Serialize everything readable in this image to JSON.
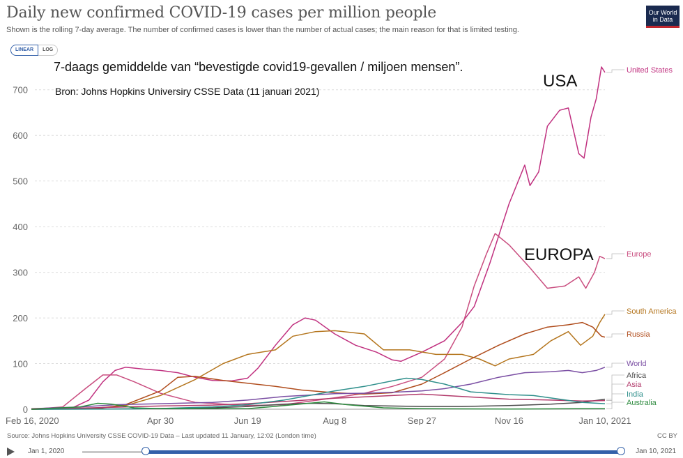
{
  "header": {
    "title": "Daily new confirmed COVID-19 cases per million people",
    "subtitle": "Shown is the rolling 7-day average. The number of confirmed cases is lower than the number of actual cases; the main reason for that is limited testing.",
    "logo_line1": "Our World",
    "logo_line2": "in Data"
  },
  "scale_toggle": {
    "linear": "LINEAR",
    "log": "LOG",
    "selected": "LINEAR"
  },
  "annotations": {
    "dutch_title": "7-daags gemiddelde van “bevestigde covid19-gevallen / miljoen mensen”.",
    "dutch_source": "Bron: Johns Hopkins Universiry CSSE Data (11 januari 2021)",
    "usa": "USA",
    "europa": "EUROPA"
  },
  "footer": {
    "source": "Source: Johns Hopkins University CSSE COVID-19 Data – Last updated 11 January, 12:02 (London time)",
    "license": "CC BY"
  },
  "timeline": {
    "start": "Jan 1, 2020",
    "end": "Jan 10, 2021"
  },
  "chart_data": {
    "type": "line",
    "ylim": [
      0,
      750
    ],
    "yticks": [
      0,
      100,
      200,
      300,
      400,
      500,
      600,
      700
    ],
    "xlim": [
      "2020-02-16",
      "2021-01-10"
    ],
    "xticks": [
      "Feb 16, 2020",
      "Apr 30",
      "Jun 19",
      "Aug 8",
      "Sep 27",
      "Nov 16",
      "Jan 10, 2021"
    ],
    "xtick_dates": [
      "2020-02-16",
      "2020-04-30",
      "2020-06-19",
      "2020-08-08",
      "2020-09-27",
      "2020-11-16",
      "2021-01-10"
    ],
    "grid": "horizontal dashed",
    "series": [
      {
        "name": "United States",
        "color": "#c0307f",
        "points": [
          [
            "2020-02-16",
            0
          ],
          [
            "2020-03-10",
            2
          ],
          [
            "2020-03-20",
            20
          ],
          [
            "2020-03-28",
            60
          ],
          [
            "2020-04-04",
            85
          ],
          [
            "2020-04-10",
            92
          ],
          [
            "2020-04-20",
            88
          ],
          [
            "2020-04-30",
            85
          ],
          [
            "2020-05-10",
            80
          ],
          [
            "2020-05-20",
            70
          ],
          [
            "2020-05-30",
            63
          ],
          [
            "2020-06-10",
            62
          ],
          [
            "2020-06-19",
            68
          ],
          [
            "2020-06-25",
            90
          ],
          [
            "2020-07-05",
            140
          ],
          [
            "2020-07-15",
            185
          ],
          [
            "2020-07-22",
            200
          ],
          [
            "2020-07-28",
            195
          ],
          [
            "2020-08-08",
            165
          ],
          [
            "2020-08-20",
            140
          ],
          [
            "2020-09-01",
            125
          ],
          [
            "2020-09-10",
            108
          ],
          [
            "2020-09-15",
            105
          ],
          [
            "2020-09-27",
            125
          ],
          [
            "2020-10-10",
            150
          ],
          [
            "2020-10-20",
            190
          ],
          [
            "2020-10-27",
            225
          ],
          [
            "2020-11-05",
            320
          ],
          [
            "2020-11-16",
            450
          ],
          [
            "2020-11-25",
            535
          ],
          [
            "2020-11-28",
            490
          ],
          [
            "2020-12-03",
            520
          ],
          [
            "2020-12-08",
            620
          ],
          [
            "2020-12-15",
            655
          ],
          [
            "2020-12-20",
            660
          ],
          [
            "2020-12-26",
            560
          ],
          [
            "2020-12-29",
            550
          ],
          [
            "2021-01-02",
            640
          ],
          [
            "2021-01-05",
            680
          ],
          [
            "2021-01-08",
            750
          ],
          [
            "2021-01-10",
            738
          ]
        ]
      },
      {
        "name": "Europe",
        "color": "#c94d7f",
        "points": [
          [
            "2020-02-16",
            0
          ],
          [
            "2020-03-05",
            5
          ],
          [
            "2020-03-18",
            45
          ],
          [
            "2020-03-28",
            75
          ],
          [
            "2020-04-05",
            75
          ],
          [
            "2020-04-15",
            60
          ],
          [
            "2020-04-30",
            35
          ],
          [
            "2020-05-20",
            15
          ],
          [
            "2020-06-19",
            8
          ],
          [
            "2020-07-10",
            10
          ],
          [
            "2020-08-08",
            25
          ],
          [
            "2020-08-25",
            35
          ],
          [
            "2020-09-10",
            50
          ],
          [
            "2020-09-27",
            70
          ],
          [
            "2020-10-10",
            110
          ],
          [
            "2020-10-20",
            180
          ],
          [
            "2020-10-27",
            270
          ],
          [
            "2020-11-03",
            340
          ],
          [
            "2020-11-08",
            385
          ],
          [
            "2020-11-16",
            360
          ],
          [
            "2020-11-28",
            310
          ],
          [
            "2020-12-08",
            265
          ],
          [
            "2020-12-18",
            270
          ],
          [
            "2020-12-26",
            290
          ],
          [
            "2020-12-30",
            265
          ],
          [
            "2021-01-04",
            300
          ],
          [
            "2021-01-07",
            335
          ],
          [
            "2021-01-10",
            330
          ]
        ]
      },
      {
        "name": "South America",
        "color": "#b4751d",
        "points": [
          [
            "2020-02-16",
            0
          ],
          [
            "2020-03-20",
            1
          ],
          [
            "2020-04-10",
            8
          ],
          [
            "2020-04-30",
            30
          ],
          [
            "2020-05-20",
            65
          ],
          [
            "2020-06-05",
            100
          ],
          [
            "2020-06-19",
            120
          ],
          [
            "2020-07-05",
            130
          ],
          [
            "2020-07-15",
            160
          ],
          [
            "2020-07-28",
            170
          ],
          [
            "2020-08-08",
            172
          ],
          [
            "2020-08-25",
            165
          ],
          [
            "2020-09-05",
            130
          ],
          [
            "2020-09-20",
            130
          ],
          [
            "2020-10-05",
            120
          ],
          [
            "2020-10-20",
            120
          ],
          [
            "2020-10-30",
            110
          ],
          [
            "2020-11-08",
            95
          ],
          [
            "2020-11-16",
            110
          ],
          [
            "2020-11-30",
            120
          ],
          [
            "2020-12-10",
            150
          ],
          [
            "2020-12-20",
            170
          ],
          [
            "2020-12-27",
            140
          ],
          [
            "2021-01-03",
            160
          ],
          [
            "2021-01-07",
            190
          ],
          [
            "2021-01-10",
            208
          ]
        ]
      },
      {
        "name": "Russia",
        "color": "#b04d1d",
        "points": [
          [
            "2020-02-16",
            0
          ],
          [
            "2020-03-25",
            1
          ],
          [
            "2020-04-10",
            10
          ],
          [
            "2020-04-30",
            40
          ],
          [
            "2020-05-10",
            70
          ],
          [
            "2020-05-20",
            72
          ],
          [
            "2020-06-05",
            63
          ],
          [
            "2020-06-19",
            57
          ],
          [
            "2020-07-05",
            50
          ],
          [
            "2020-07-20",
            42
          ],
          [
            "2020-08-08",
            36
          ],
          [
            "2020-08-25",
            33
          ],
          [
            "2020-09-10",
            36
          ],
          [
            "2020-09-27",
            55
          ],
          [
            "2020-10-10",
            80
          ],
          [
            "2020-10-25",
            110
          ],
          [
            "2020-11-10",
            140
          ],
          [
            "2020-11-25",
            165
          ],
          [
            "2020-12-08",
            180
          ],
          [
            "2020-12-20",
            185
          ],
          [
            "2020-12-28",
            190
          ],
          [
            "2021-01-03",
            180
          ],
          [
            "2021-01-08",
            160
          ],
          [
            "2021-01-10",
            158
          ]
        ]
      },
      {
        "name": "World",
        "color": "#7a4ea3",
        "points": [
          [
            "2020-02-16",
            1
          ],
          [
            "2020-03-15",
            5
          ],
          [
            "2020-04-05",
            10
          ],
          [
            "2020-04-30",
            12
          ],
          [
            "2020-05-30",
            15
          ],
          [
            "2020-06-19",
            20
          ],
          [
            "2020-07-10",
            28
          ],
          [
            "2020-08-08",
            34
          ],
          [
            "2020-08-25",
            35
          ],
          [
            "2020-09-10",
            37
          ],
          [
            "2020-09-27",
            40
          ],
          [
            "2020-10-10",
            45
          ],
          [
            "2020-10-25",
            55
          ],
          [
            "2020-11-10",
            70
          ],
          [
            "2020-11-25",
            80
          ],
          [
            "2020-12-10",
            82
          ],
          [
            "2020-12-20",
            85
          ],
          [
            "2020-12-28",
            80
          ],
          [
            "2021-01-05",
            85
          ],
          [
            "2021-01-10",
            92
          ]
        ]
      },
      {
        "name": "Africa",
        "color": "#4b4b4b",
        "points": [
          [
            "2020-02-16",
            0
          ],
          [
            "2020-03-30",
            0.5
          ],
          [
            "2020-04-30",
            1.5
          ],
          [
            "2020-05-30",
            3
          ],
          [
            "2020-06-19",
            6
          ],
          [
            "2020-07-10",
            11
          ],
          [
            "2020-07-25",
            13
          ],
          [
            "2020-08-08",
            12
          ],
          [
            "2020-08-25",
            8
          ],
          [
            "2020-09-27",
            6
          ],
          [
            "2020-10-20",
            6
          ],
          [
            "2020-11-16",
            8
          ],
          [
            "2020-12-10",
            11
          ],
          [
            "2020-12-28",
            15
          ],
          [
            "2021-01-10",
            22
          ]
        ]
      },
      {
        "name": "Asia",
        "color": "#b23a6b",
        "points": [
          [
            "2020-02-16",
            1
          ],
          [
            "2020-03-10",
            2
          ],
          [
            "2020-04-10",
            5
          ],
          [
            "2020-04-30",
            7
          ],
          [
            "2020-05-30",
            9
          ],
          [
            "2020-06-19",
            12
          ],
          [
            "2020-07-10",
            17
          ],
          [
            "2020-08-08",
            24
          ],
          [
            "2020-09-10",
            30
          ],
          [
            "2020-09-27",
            33
          ],
          [
            "2020-10-20",
            28
          ],
          [
            "2020-11-16",
            22
          ],
          [
            "2020-12-10",
            20
          ],
          [
            "2020-12-28",
            18
          ],
          [
            "2021-01-10",
            19
          ]
        ]
      },
      {
        "name": "India",
        "color": "#2e8f8b",
        "points": [
          [
            "2020-02-16",
            0
          ],
          [
            "2020-04-10",
            0.5
          ],
          [
            "2020-04-30",
            1.5
          ],
          [
            "2020-05-30",
            5
          ],
          [
            "2020-06-19",
            10
          ],
          [
            "2020-07-10",
            20
          ],
          [
            "2020-08-08",
            40
          ],
          [
            "2020-08-25",
            50
          ],
          [
            "2020-09-10",
            62
          ],
          [
            "2020-09-18",
            68
          ],
          [
            "2020-09-27",
            65
          ],
          [
            "2020-10-10",
            55
          ],
          [
            "2020-10-25",
            38
          ],
          [
            "2020-11-16",
            32
          ],
          [
            "2020-11-30",
            30
          ],
          [
            "2020-12-15",
            22
          ],
          [
            "2020-12-28",
            15
          ],
          [
            "2021-01-10",
            12
          ]
        ]
      },
      {
        "name": "Australia",
        "color": "#2d8a3e",
        "points": [
          [
            "2020-02-16",
            0
          ],
          [
            "2020-03-15",
            5
          ],
          [
            "2020-03-25",
            13
          ],
          [
            "2020-04-02",
            11
          ],
          [
            "2020-04-15",
            3
          ],
          [
            "2020-04-30",
            1
          ],
          [
            "2020-06-19",
            1
          ],
          [
            "2020-07-10",
            8
          ],
          [
            "2020-08-02",
            16
          ],
          [
            "2020-08-15",
            10
          ],
          [
            "2020-09-05",
            3
          ],
          [
            "2020-09-27",
            1
          ],
          [
            "2020-11-16",
            0.5
          ],
          [
            "2020-12-25",
            1
          ],
          [
            "2021-01-10",
            1
          ]
        ]
      }
    ]
  }
}
